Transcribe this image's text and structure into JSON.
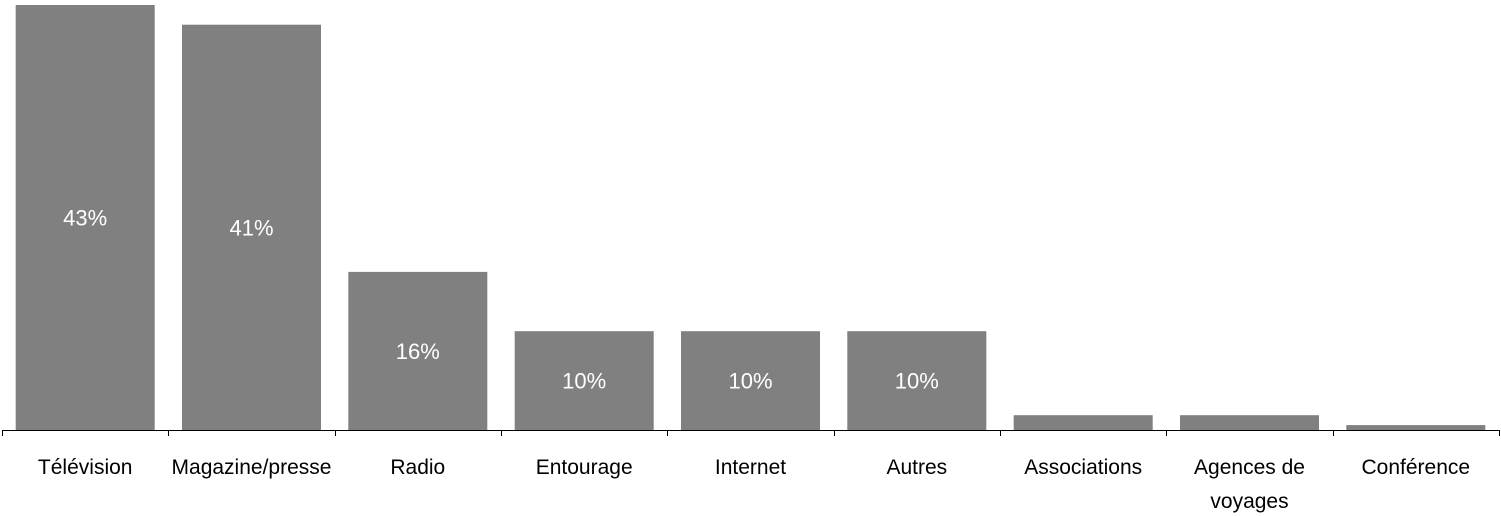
{
  "chart_data": {
    "type": "bar",
    "categories": [
      "Télévision",
      "Magazine/presse",
      "Radio",
      "Entourage",
      "Internet",
      "Autres",
      "Associations",
      "Agences de voyages",
      "Conférence"
    ],
    "values": [
      43,
      41,
      16,
      10,
      10,
      10,
      1.5,
      1.5,
      0.5
    ],
    "value_labels": [
      "43%",
      "41%",
      "16%",
      "10%",
      "10%",
      "10%",
      "",
      "",
      ""
    ],
    "category_label_lines": [
      [
        "Télévision"
      ],
      [
        "Magazine/presse"
      ],
      [
        "Radio"
      ],
      [
        "Entourage"
      ],
      [
        "Internet"
      ],
      [
        "Autres"
      ],
      [
        "Associations"
      ],
      [
        "Agences de",
        "voyages"
      ],
      [
        "Conférence"
      ]
    ],
    "ylim": [
      0,
      43.2
    ],
    "grid": false,
    "legend": "none",
    "bar_color": "#808080",
    "label_color": "#ffffff",
    "axis_color": "#000000"
  }
}
